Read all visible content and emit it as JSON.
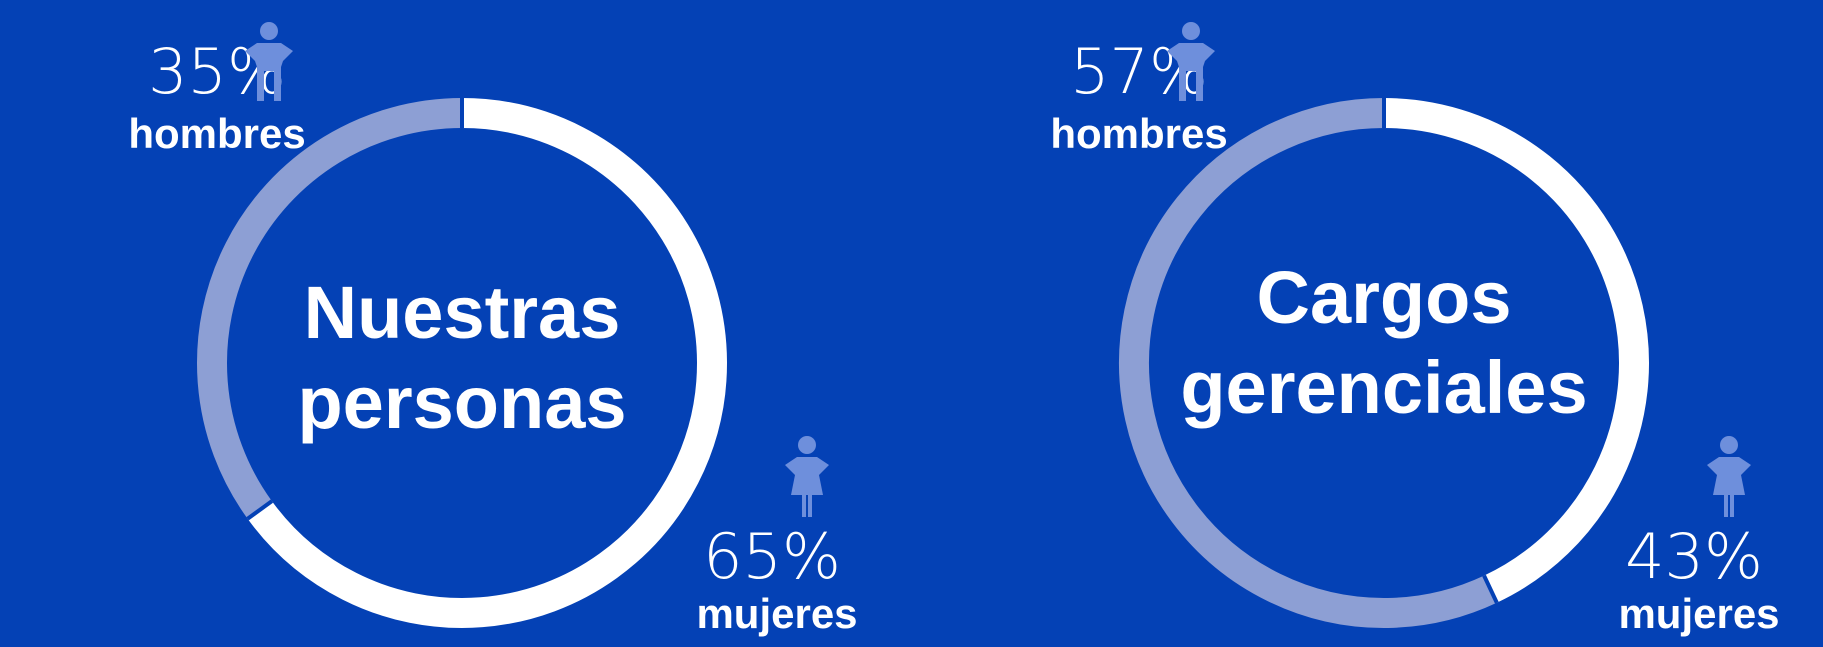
{
  "chart_data": [
    {
      "type": "donut",
      "title": "Nuestras personas",
      "categories": [
        "hombres",
        "mujeres"
      ],
      "values": [
        35,
        65
      ],
      "value_labels": [
        "35%",
        "65%"
      ],
      "colors": [
        "#8d9fd4",
        "#ffffff"
      ]
    },
    {
      "type": "donut",
      "title": "Cargos gerenciales",
      "categories": [
        "hombres",
        "mujeres"
      ],
      "values": [
        57,
        43
      ],
      "value_labels": [
        "57%",
        "43%"
      ],
      "colors": [
        "#8d9fd4",
        "#ffffff"
      ]
    }
  ]
}
